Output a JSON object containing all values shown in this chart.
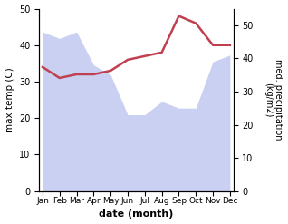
{
  "months": [
    "Jan",
    "Feb",
    "Mar",
    "Apr",
    "May",
    "Jun",
    "Jul",
    "Aug",
    "Sep",
    "Oct",
    "Nov",
    "Dec"
  ],
  "precipitation": [
    48,
    46,
    48,
    38,
    35,
    23,
    23,
    27,
    25,
    25,
    39,
    41
  ],
  "max_temp": [
    34,
    31,
    32,
    32,
    33,
    36,
    37,
    38,
    48,
    46,
    40,
    40
  ],
  "temp_color": "#c04050",
  "fill_color": "#c0c8f0",
  "xlabel": "date (month)",
  "ylabel_left": "max temp (C)",
  "ylabel_right": "med. precipitation\n(kg/m2)",
  "ylim_left": [
    0,
    50
  ],
  "ylim_right": [
    0,
    55
  ],
  "yticks_left": [
    0,
    10,
    20,
    30,
    40,
    50
  ],
  "yticks_right": [
    0,
    10,
    20,
    30,
    40,
    50
  ],
  "bg_color": "#ffffff"
}
